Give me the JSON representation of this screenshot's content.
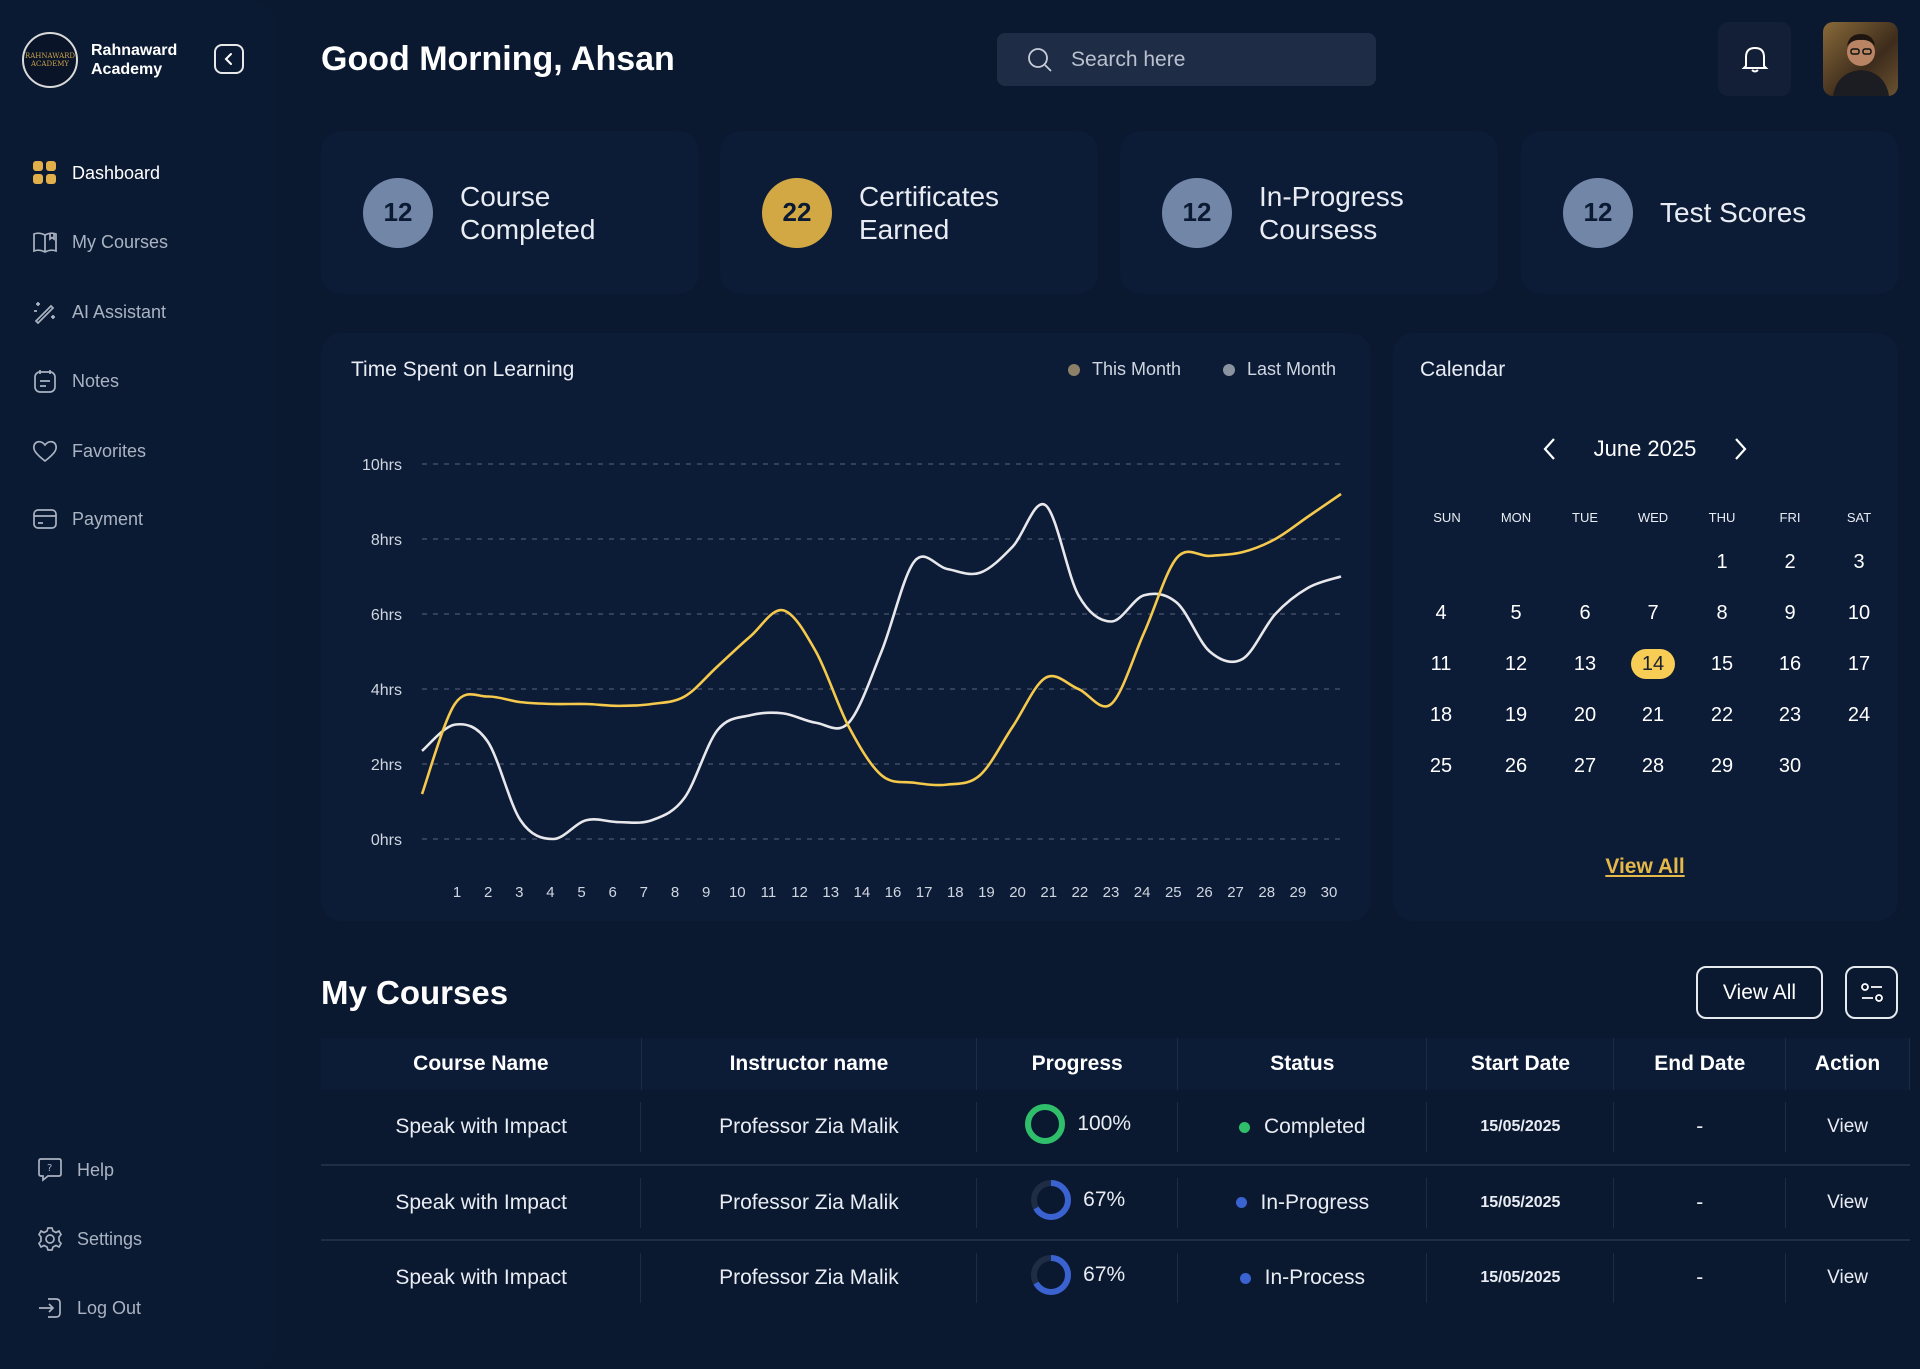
{
  "sidebar": {
    "brand": "Rahnaward Academy",
    "logo_text": "RAHNAWARD ACADEMY",
    "items": [
      {
        "label": "Dashboard",
        "icon": "grid-icon",
        "active": true
      },
      {
        "label": "My Courses",
        "icon": "book-icon"
      },
      {
        "label": "AI Assistant",
        "icon": "magic-wand-icon"
      },
      {
        "label": "Notes",
        "icon": "notes-icon"
      },
      {
        "label": "Favorites",
        "icon": "heart-icon"
      },
      {
        "label": "Payment",
        "icon": "card-icon"
      }
    ],
    "bottom": [
      {
        "label": "Help",
        "icon": "help-icon"
      },
      {
        "label": "Settings",
        "icon": "gear-icon"
      },
      {
        "label": "Log Out",
        "icon": "logout-icon"
      }
    ]
  },
  "header": {
    "greeting": "Good Morning, Ahsan",
    "search_placeholder": "Search here"
  },
  "stats": [
    {
      "value": "12",
      "label": "Course Completed",
      "color": "#7287a8"
    },
    {
      "value": "22",
      "label": "Certificates Earned",
      "color": "#d2a845"
    },
    {
      "value": "12",
      "label": "In-Progress Coursess",
      "color": "#7287a8"
    },
    {
      "value": "12",
      "label": "Test Scores",
      "color": "#7287a8"
    }
  ],
  "chart_data": {
    "type": "line",
    "title": "Time Spent on Learning",
    "x": [
      "1",
      "2",
      "3",
      "4",
      "5",
      "6",
      "7",
      "8",
      "9",
      "10",
      "11",
      "12",
      "13",
      "14",
      "16",
      "17",
      "18",
      "19",
      "20",
      "21",
      "22",
      "23",
      "24",
      "25",
      "26",
      "27",
      "28",
      "29",
      "30"
    ],
    "y_ticks": [
      "0hrs",
      "2hrs",
      "4hrs",
      "6hrs",
      "8hrs",
      "10hrs"
    ],
    "ylim": [
      0,
      10
    ],
    "grid": true,
    "legend": "top-right",
    "series": [
      {
        "name": "This Month",
        "color": "#f5c94c",
        "legend_color": "#8c8068",
        "values": [
          1.2,
          3.6,
          3.8,
          3.65,
          3.6,
          3.6,
          3.55,
          3.6,
          3.8,
          4.6,
          5.4,
          6.1,
          5.0,
          3.0,
          1.7,
          1.5,
          1.45,
          1.7,
          3.0,
          4.3,
          4.0,
          3.6,
          5.5,
          7.5,
          7.55,
          7.65,
          8.0,
          8.6,
          9.2
        ]
      },
      {
        "name": "Last Month",
        "color": "#e8e8ec",
        "legend_color": "#8c93a0",
        "values": [
          2.35,
          3.05,
          2.6,
          0.5,
          0.0,
          0.5,
          0.45,
          0.5,
          1.1,
          2.9,
          3.3,
          3.35,
          3.1,
          3.1,
          5.0,
          7.4,
          7.2,
          7.1,
          7.8,
          8.9,
          6.5,
          5.8,
          6.5,
          6.3,
          5.0,
          4.8,
          6.0,
          6.7,
          7.0
        ]
      }
    ]
  },
  "calendar": {
    "title": "Calendar",
    "month": "June 2025",
    "weekdays": [
      "SUN",
      "MON",
      "TUE",
      "WED",
      "THU",
      "FRI",
      "SAT"
    ],
    "first_weekday": 4,
    "days": 30,
    "selected": 14,
    "view_all": "View All",
    "accent": "#f7cd55"
  },
  "courses": {
    "title": "My Courses",
    "view_all": "View All",
    "columns": [
      "Course Name",
      "Instructor name",
      "Progress",
      "Status",
      "Start Date",
      "End Date",
      "Action"
    ],
    "rows": [
      {
        "course": "Speak with Impact",
        "instructor": "Professor Zia Malik",
        "progress": 100,
        "progress_label": "100%",
        "status": "Completed",
        "status_color": "#2fbf6b",
        "start": "15/05/2025",
        "end": "-",
        "action": "View"
      },
      {
        "course": "Speak with Impact",
        "instructor": "Professor Zia Malik",
        "progress": 67,
        "progress_label": "67%",
        "status": "In-Progress",
        "status_color": "#3a63d1",
        "start": "15/05/2025",
        "end": "-",
        "action": "View"
      },
      {
        "course": "Speak with Impact",
        "instructor": "Professor Zia Malik",
        "progress": 67,
        "progress_label": "67%",
        "status": "In-Process",
        "status_color": "#3a63d1",
        "start": "15/05/2025",
        "end": "-",
        "action": "View"
      }
    ]
  }
}
